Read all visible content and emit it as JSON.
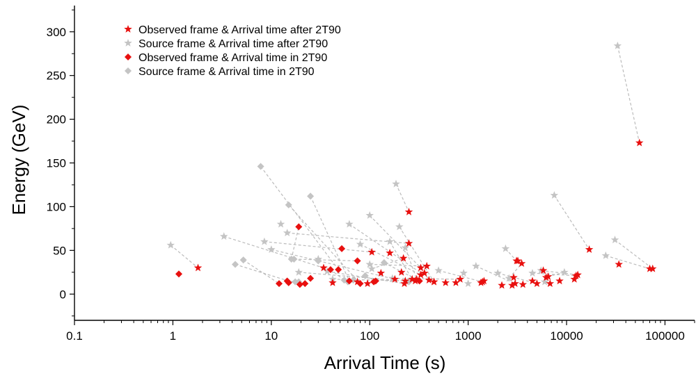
{
  "chart_data": {
    "type": "scatter",
    "title": "",
    "xlabel": "Arrival Time (s)",
    "ylabel": "Energy (GeV)",
    "xscale": "log",
    "xlim": [
      0.1,
      200000
    ],
    "ylim": [
      -30,
      330
    ],
    "xticks": [
      0.1,
      1,
      10,
      100,
      1000,
      10000,
      100000
    ],
    "xtick_labels": [
      "0.1",
      "1",
      "10",
      "100",
      "1000",
      "10000",
      "100000"
    ],
    "yticks": [
      0,
      50,
      100,
      150,
      200,
      250,
      300
    ],
    "ytick_labels": [
      "0",
      "50",
      "100",
      "150",
      "200",
      "250",
      "300"
    ],
    "grid": false,
    "legend_position": "top-left",
    "colors": {
      "observed": "#e8100f",
      "source": "#c4c4c4",
      "connector": "#bbbbbb"
    },
    "series": [
      {
        "name": "Observed frame & Arrival time after 2T90",
        "marker": "star",
        "color": "#e8100f"
      },
      {
        "name": "Source frame & Arrival time after 2T90",
        "marker": "star",
        "color": "#c4c4c4"
      },
      {
        "name": "Observed frame & Arrival time in 2T90",
        "marker": "diamond",
        "color": "#e8100f"
      },
      {
        "name": "Source frame & Arrival time in 2T90",
        "marker": "diamond",
        "color": "#c4c4c4"
      }
    ],
    "pairs": [
      {
        "src": [
          0.95,
          56
        ],
        "obs": [
          1.8,
          30
        ],
        "marker": "star"
      },
      {
        "src": [
          3.3,
          66
        ],
        "obs": [
          34,
          30
        ],
        "marker": "star"
      },
      {
        "src": [
          8.5,
          60
        ],
        "obs": [
          105,
          48
        ],
        "marker": "star"
      },
      {
        "src": [
          10,
          51
        ],
        "obs": [
          180,
          17
        ],
        "marker": "star"
      },
      {
        "src": [
          14.5,
          70
        ],
        "obs": [
          250,
          58
        ],
        "marker": "star"
      },
      {
        "src": [
          19,
          25
        ],
        "obs": [
          230,
          15
        ],
        "marker": "star"
      },
      {
        "src": [
          37,
          26
        ],
        "obs": [
          225,
          12
        ],
        "marker": "star"
      },
      {
        "src": [
          42,
          17
        ],
        "obs": [
          290,
          15
        ],
        "marker": "star"
      },
      {
        "src": [
          62,
          80
        ],
        "obs": [
          450,
          14
        ],
        "marker": "star"
      },
      {
        "src": [
          80,
          57
        ],
        "obs": [
          330,
          22
        ],
        "marker": "star"
      },
      {
        "src": [
          100,
          90
        ],
        "obs": [
          330,
          30
        ],
        "marker": "star"
      },
      {
        "src": [
          105,
          29
        ],
        "obs": [
          220,
          41
        ],
        "marker": "star"
      },
      {
        "src": [
          100,
          34
        ],
        "obs": [
          380,
          32
        ],
        "marker": "star"
      },
      {
        "src": [
          160,
          60
        ],
        "obs": [
          270,
          17
        ],
        "marker": "star"
      },
      {
        "src": [
          170,
          18
        ],
        "obs": [
          830,
          17
        ],
        "marker": "star"
      },
      {
        "src": [
          185,
          126
        ],
        "obs": [
          250,
          94
        ],
        "marker": "star"
      },
      {
        "src": [
          200,
          77
        ],
        "obs": [
          450,
          14
        ],
        "marker": "star"
      },
      {
        "src": [
          230,
          53
        ],
        "obs": [
          300,
          17
        ],
        "marker": "star"
      },
      {
        "src": [
          500,
          27
        ],
        "obs": [
          1400,
          14
        ],
        "marker": "star"
      },
      {
        "src": [
          1200,
          32
        ],
        "obs": [
          3000,
          12
        ],
        "marker": "star"
      },
      {
        "src": [
          2000,
          24
        ],
        "obs": [
          5000,
          12
        ],
        "marker": "star"
      },
      {
        "src": [
          2400,
          52
        ],
        "obs": [
          3100,
          38
        ],
        "marker": "star"
      },
      {
        "src": [
          2600,
          18
        ],
        "obs": [
          3500,
          35
        ],
        "marker": "star"
      },
      {
        "src": [
          4500,
          24
        ],
        "obs": [
          12500,
          21
        ],
        "marker": "star"
      },
      {
        "src": [
          5500,
          27
        ],
        "obs": [
          13000,
          22
        ],
        "marker": "star"
      },
      {
        "src": [
          6000,
          14
        ],
        "obs": [
          6800,
          12
        ],
        "marker": "star"
      },
      {
        "src": [
          7500,
          113
        ],
        "obs": [
          17000,
          51
        ],
        "marker": "star"
      },
      {
        "src": [
          9500,
          25
        ],
        "obs": [
          6500,
          20
        ],
        "marker": "star"
      },
      {
        "src": [
          25000,
          44
        ],
        "obs": [
          70000,
          29
        ],
        "marker": "star"
      },
      {
        "src": [
          31000,
          62
        ],
        "obs": [
          75000,
          29
        ],
        "marker": "star"
      },
      {
        "src": [
          33000,
          284
        ],
        "obs": [
          55000,
          173
        ],
        "marker": "star"
      },
      {
        "src": [
          7.8,
          146
        ],
        "obs": [
          48,
          28
        ],
        "marker": "diamond"
      },
      {
        "src": [
          15,
          102
        ],
        "obs": [
          80,
          12
        ],
        "marker": "diamond"
      },
      {
        "src": [
          25,
          112
        ],
        "obs": [
          62,
          15
        ],
        "marker": "diamond"
      },
      {
        "src": [
          16,
          40
        ],
        "obs": [
          19,
          77
        ],
        "marker": "diamond"
      },
      {
        "src": [
          5.2,
          39
        ],
        "obs": [
          12,
          12
        ],
        "marker": "diamond"
      },
      {
        "src": [
          4.3,
          34
        ],
        "obs": [
          19.5,
          11
        ],
        "marker": "diamond"
      },
      {
        "src": [
          19,
          14
        ],
        "obs": [
          14.5,
          15
        ],
        "marker": "diamond"
      },
      {
        "src": [
          17,
          40
        ],
        "obs": [
          75,
          38
        ],
        "marker": "diamond"
      },
      {
        "src": [
          55,
          16
        ],
        "obs": [
          40,
          28
        ],
        "marker": "diamond"
      },
      {
        "src": [
          90,
          21
        ],
        "obs": [
          115,
          15
        ],
        "marker": "diamond"
      },
      {
        "src": [
          140,
          36
        ],
        "obs": [
          320,
          15
        ],
        "marker": "diamond"
      }
    ],
    "extra_observed_stars": [
      [
        42,
        13
      ],
      [
        75,
        14
      ],
      [
        95,
        12
      ],
      [
        130,
        24
      ],
      [
        160,
        47
      ],
      [
        210,
        25
      ],
      [
        360,
        24
      ],
      [
        400,
        16
      ],
      [
        590,
        13
      ],
      [
        750,
        13
      ],
      [
        1350,
        13
      ],
      [
        1450,
        15
      ],
      [
        2200,
        10
      ],
      [
        2800,
        10
      ],
      [
        2900,
        19
      ],
      [
        3200,
        38
      ],
      [
        3600,
        11
      ],
      [
        4500,
        15
      ],
      [
        5800,
        27
      ],
      [
        6200,
        19
      ],
      [
        8500,
        15
      ],
      [
        12000,
        17
      ],
      [
        34000,
        34
      ]
    ],
    "extra_source_stars": [
      [
        30,
        40
      ],
      [
        12.5,
        80
      ],
      [
        900,
        24
      ],
      [
        1000,
        12
      ]
    ],
    "extra_observed_diamonds": [
      [
        1.15,
        23
      ],
      [
        52,
        52
      ],
      [
        22,
        12
      ],
      [
        25,
        18
      ],
      [
        110,
        14
      ],
      [
        15,
        13
      ]
    ],
    "extra_source_diamonds": [
      [
        17.5,
        14
      ],
      [
        30,
        38
      ],
      [
        68,
        16
      ],
      [
        60,
        14
      ],
      [
        250,
        14
      ]
    ]
  }
}
